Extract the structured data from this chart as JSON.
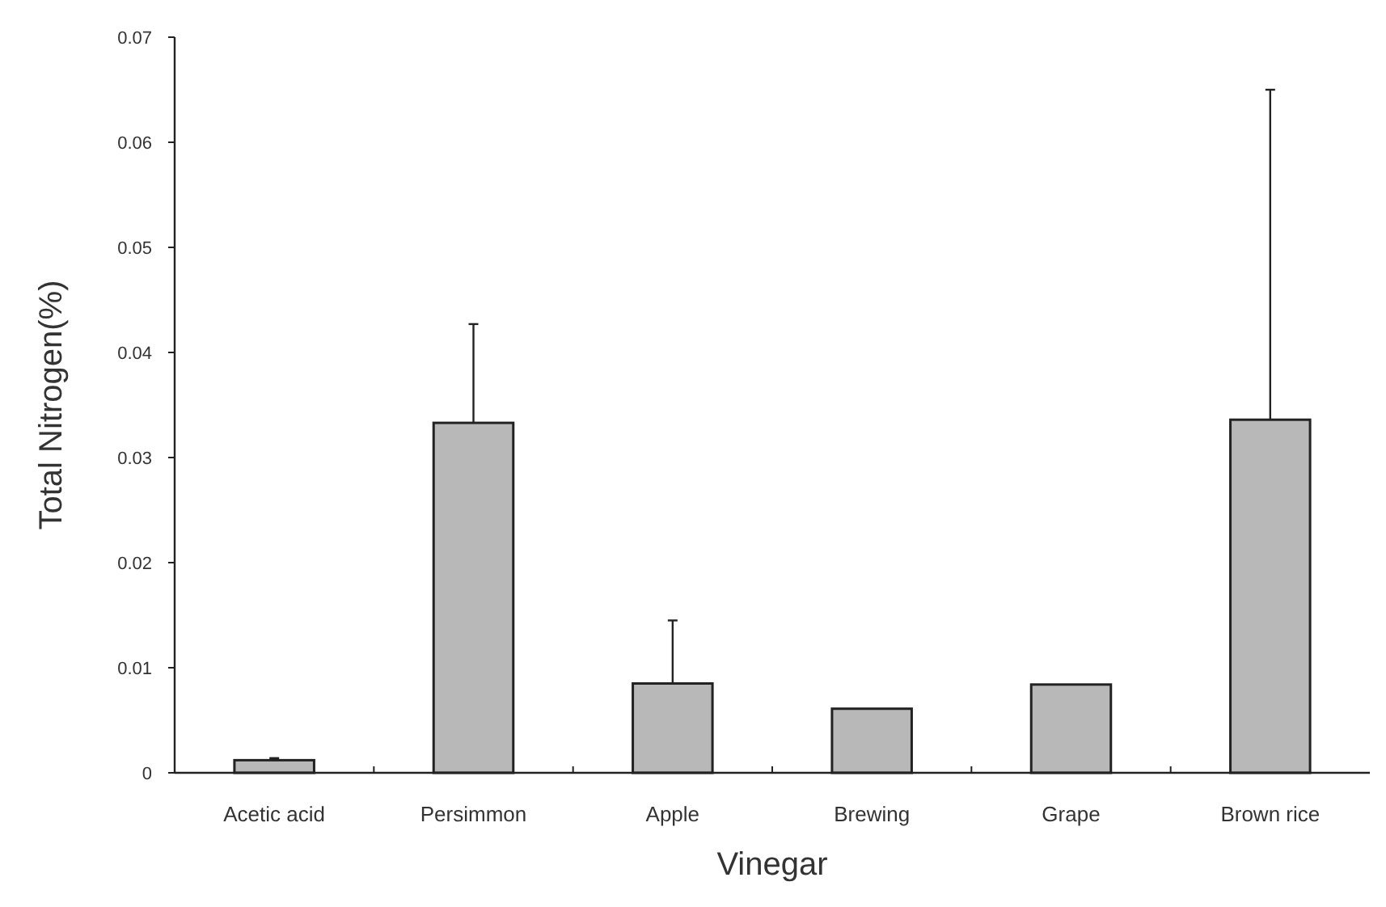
{
  "chart_data": {
    "type": "bar",
    "xlabel": "Vinegar",
    "ylabel": "Total Nitrogen(%)",
    "categories": [
      "Acetic acid",
      "Persimmon",
      "Apple",
      "Brewing",
      "Grape",
      "Brown rice"
    ],
    "values": [
      0.0012,
      0.0333,
      0.0085,
      0.0061,
      0.0084,
      0.0336
    ],
    "errors": [
      0.0002,
      0.0094,
      0.006,
      null,
      null,
      0.0314
    ],
    "color": "#b8b8b8",
    "ylim": [
      0,
      0.07
    ],
    "yticks": [
      0,
      0.01,
      0.02,
      0.03,
      0.04,
      0.05,
      0.06,
      0.07
    ],
    "grid": false
  }
}
